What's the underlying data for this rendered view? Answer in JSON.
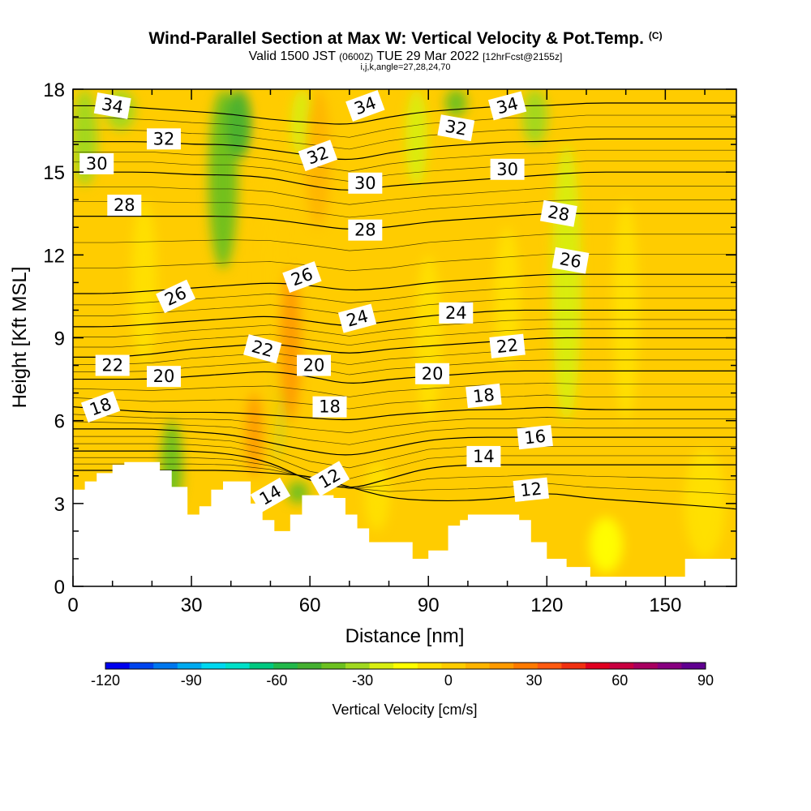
{
  "title": {
    "main": "Wind-Parallel Section at Max W: Vertical Velocity & Pot.Temp.",
    "copyright": "(C)",
    "valid_prefix": "Valid 1500 JST",
    "valid_utc": "(0600Z)",
    "valid_date": "TUE 29 Mar 2022",
    "forecast": "[12hrFcst@2155z]",
    "indices": "i,j,k,angle=27,28,24,70"
  },
  "chart_data": {
    "type": "contour-section",
    "xlabel": "Distance [nm]",
    "ylabel": "Height [Kft MSL]",
    "xlim": [
      0,
      168
    ],
    "ylim": [
      0,
      18
    ],
    "x_ticks": [
      0,
      30,
      60,
      90,
      120,
      150
    ],
    "y_ticks": [
      0,
      3,
      6,
      9,
      12,
      15,
      18
    ],
    "colorbar": {
      "label": "Vertical Velocity [cm/s]",
      "min": -120,
      "max": 90,
      "step": 10,
      "tick_values": [
        -120,
        -90,
        -60,
        -30,
        0,
        30,
        60,
        90
      ],
      "tick_labels": [
        "-120",
        "-90",
        "-60",
        "-30",
        "0",
        "30",
        "60",
        "90"
      ],
      "colors": [
        "#0000ee",
        "#0044ee",
        "#0077ee",
        "#00aaf0",
        "#00d8f0",
        "#00e0c8",
        "#00c880",
        "#22b84a",
        "#44b030",
        "#6cc020",
        "#a0d820",
        "#d8ee10",
        "#ffff00",
        "#ffe000",
        "#ffcc00",
        "#ffb400",
        "#ff9a00",
        "#ff7a00",
        "#ff5a10",
        "#f03010",
        "#e00020",
        "#c80040",
        "#a80060",
        "#880080",
        "#600090"
      ]
    },
    "terrain_profile": {
      "x": [
        0,
        3,
        6,
        10,
        13,
        22,
        25,
        29,
        32,
        35,
        38,
        45,
        48,
        51,
        55,
        58,
        66,
        69,
        72,
        75,
        78,
        86,
        90,
        95,
        98,
        100,
        113,
        116,
        120,
        125,
        131,
        145,
        155,
        168
      ],
      "y": [
        3.5,
        3.8,
        4.1,
        4.4,
        4.5,
        4.2,
        3.6,
        2.6,
        2.9,
        3.5,
        3.8,
        3.0,
        2.4,
        2.0,
        2.6,
        3.3,
        3.2,
        2.6,
        2.1,
        1.6,
        1.6,
        1.0,
        1.3,
        2.2,
        2.4,
        2.6,
        2.4,
        1.6,
        1.0,
        0.7,
        0.35,
        0.35,
        1.0,
        1.0
      ]
    },
    "isentropes": [
      {
        "theta": 12,
        "y": [
          4.2,
          4.2,
          4.2,
          4.2,
          4.2,
          4.1,
          4.0,
          3.6,
          3.2,
          3.1,
          3.1,
          3.2,
          3.4,
          3.2,
          3.1,
          3.0,
          2.9,
          2.8
        ]
      },
      {
        "theta": 14,
        "y": [
          4.9,
          4.9,
          4.9,
          4.9,
          4.8,
          4.5,
          3.8,
          3.5,
          3.9,
          4.3,
          4.4,
          4.4,
          4.4,
          4.4,
          4.4,
          4.4,
          4.4,
          4.4
        ]
      },
      {
        "theta": 16,
        "y": [
          5.7,
          5.7,
          5.7,
          5.6,
          5.5,
          5.2,
          4.9,
          4.7,
          5.0,
          5.3,
          5.4,
          5.4,
          5.4,
          5.4,
          5.4,
          5.4,
          5.4,
          5.4
        ]
      },
      {
        "theta": 18,
        "y": [
          6.5,
          6.4,
          6.3,
          6.3,
          6.3,
          6.2,
          6.1,
          6.0,
          6.2,
          6.3,
          6.4,
          6.4,
          6.5,
          6.4,
          6.4,
          6.4,
          6.4,
          6.4
        ]
      },
      {
        "theta": 20,
        "y": [
          7.5,
          7.5,
          7.5,
          7.6,
          7.7,
          7.8,
          7.6,
          7.3,
          7.5,
          7.6,
          7.7,
          7.8,
          7.8,
          7.8,
          7.8,
          7.8,
          7.8,
          7.8
        ]
      },
      {
        "theta": 22,
        "y": [
          8.3,
          8.3,
          8.4,
          8.6,
          8.7,
          8.8,
          8.6,
          8.4,
          8.6,
          8.7,
          8.8,
          8.9,
          9.0,
          9.0,
          9.0,
          9.0,
          9.0,
          9.0
        ]
      },
      {
        "theta": 24,
        "y": [
          9.4,
          9.4,
          9.5,
          9.6,
          9.7,
          9.8,
          9.6,
          9.4,
          9.6,
          9.8,
          9.9,
          10.0,
          10.0,
          10.0,
          10.0,
          10.0,
          10.0,
          10.0
        ]
      },
      {
        "theta": 26,
        "y": [
          10.6,
          10.6,
          10.7,
          10.8,
          10.9,
          11.0,
          10.9,
          10.7,
          10.8,
          11.0,
          11.1,
          11.2,
          11.3,
          11.3,
          11.3,
          11.3,
          11.3,
          11.3
        ]
      },
      {
        "theta": 28,
        "y": [
          13.4,
          13.4,
          13.4,
          13.4,
          13.4,
          13.3,
          13.1,
          12.9,
          13.0,
          13.2,
          13.3,
          13.4,
          13.5,
          13.5,
          13.5,
          13.5,
          13.5,
          13.5
        ]
      },
      {
        "theta": 30,
        "y": [
          15.0,
          15.0,
          15.0,
          14.9,
          14.9,
          14.8,
          14.5,
          14.3,
          14.5,
          14.6,
          14.7,
          14.8,
          14.9,
          15.0,
          15.0,
          15.0,
          15.0,
          15.0
        ]
      },
      {
        "theta": 32,
        "y": [
          16.1,
          16.1,
          16.1,
          16.0,
          16.0,
          15.8,
          15.6,
          15.4,
          15.7,
          15.9,
          16.0,
          16.1,
          16.1,
          16.2,
          16.2,
          16.2,
          16.2,
          16.2
        ]
      },
      {
        "theta": 34,
        "y": [
          17.4,
          17.4,
          17.3,
          17.2,
          17.1,
          16.9,
          16.8,
          16.7,
          17.0,
          17.2,
          17.3,
          17.4,
          17.4,
          17.5,
          17.5,
          17.5,
          17.5,
          17.5
        ]
      }
    ],
    "isentrope_x": [
      0,
      10,
      20,
      30,
      40,
      50,
      60,
      70,
      80,
      90,
      100,
      110,
      120,
      130,
      140,
      150,
      160,
      168
    ],
    "contour_labels": [
      {
        "text": "12",
        "x": 65,
        "y": 3.9,
        "rot": -30
      },
      {
        "text": "12",
        "x": 116,
        "y": 3.5,
        "rot": -6
      },
      {
        "text": "14",
        "x": 50,
        "y": 3.3,
        "rot": -30
      },
      {
        "text": "14",
        "x": 104,
        "y": 4.7,
        "rot": 0
      },
      {
        "text": "16",
        "x": 117,
        "y": 5.4,
        "rot": -6
      },
      {
        "text": "18",
        "x": 7,
        "y": 6.5,
        "rot": -20
      },
      {
        "text": "18",
        "x": 65,
        "y": 6.5,
        "rot": 0
      },
      {
        "text": "18",
        "x": 104,
        "y": 6.9,
        "rot": -6
      },
      {
        "text": "20",
        "x": 23,
        "y": 7.6,
        "rot": 0
      },
      {
        "text": "20",
        "x": 61,
        "y": 8.0,
        "rot": 0
      },
      {
        "text": "20",
        "x": 91,
        "y": 7.7,
        "rot": 0
      },
      {
        "text": "22",
        "x": 10,
        "y": 8.0,
        "rot": 0
      },
      {
        "text": "22",
        "x": 48,
        "y": 8.6,
        "rot": 15
      },
      {
        "text": "22",
        "x": 110,
        "y": 8.7,
        "rot": -6
      },
      {
        "text": "24",
        "x": 72,
        "y": 9.7,
        "rot": -15
      },
      {
        "text": "24",
        "x": 97,
        "y": 9.9,
        "rot": 0
      },
      {
        "text": "26",
        "x": 26,
        "y": 10.5,
        "rot": -25
      },
      {
        "text": "26",
        "x": 58,
        "y": 11.2,
        "rot": -20
      },
      {
        "text": "26",
        "x": 126,
        "y": 11.8,
        "rot": 10
      },
      {
        "text": "28",
        "x": 13,
        "y": 13.8,
        "rot": 0
      },
      {
        "text": "28",
        "x": 74,
        "y": 12.9,
        "rot": 0
      },
      {
        "text": "28",
        "x": 123,
        "y": 13.5,
        "rot": 10
      },
      {
        "text": "30",
        "x": 6,
        "y": 15.3,
        "rot": 0
      },
      {
        "text": "30",
        "x": 74,
        "y": 14.6,
        "rot": 0
      },
      {
        "text": "30",
        "x": 110,
        "y": 15.1,
        "rot": 0
      },
      {
        "text": "32",
        "x": 23,
        "y": 16.2,
        "rot": 0
      },
      {
        "text": "32",
        "x": 62,
        "y": 15.6,
        "rot": -20
      },
      {
        "text": "32",
        "x": 97,
        "y": 16.6,
        "rot": 10
      },
      {
        "text": "34",
        "x": 10,
        "y": 17.4,
        "rot": 10
      },
      {
        "text": "34",
        "x": 74,
        "y": 17.4,
        "rot": -20
      },
      {
        "text": "34",
        "x": 110,
        "y": 17.4,
        "rot": -15
      }
    ],
    "velocity_features": [
      {
        "x": 3,
        "y0": 14.5,
        "y1": 18,
        "w": 4,
        "value": -15
      },
      {
        "x": 12,
        "y0": 16.5,
        "y1": 18,
        "w": 5,
        "value": -15
      },
      {
        "x": 38,
        "y0": 11.5,
        "y1": 18,
        "w": 5,
        "value": -25
      },
      {
        "x": 42,
        "y0": 15.5,
        "y1": 18,
        "w": 4,
        "value": -35
      },
      {
        "x": 25,
        "y0": 2.8,
        "y1": 6.0,
        "w": 3,
        "value": -30
      },
      {
        "x": 51,
        "y0": 4.5,
        "y1": 8.0,
        "w": 2,
        "value": -20
      },
      {
        "x": 57,
        "y0": 3.0,
        "y1": 3.8,
        "w": 3,
        "value": -30
      },
      {
        "x": 58,
        "y0": 15.5,
        "y1": 18,
        "w": 3,
        "value": -10
      },
      {
        "x": 87,
        "y0": 14.5,
        "y1": 18,
        "w": 3,
        "value": -10
      },
      {
        "x": 97,
        "y0": 17.0,
        "y1": 18,
        "w": 3,
        "value": -25
      },
      {
        "x": 117,
        "y0": 16.0,
        "y1": 18,
        "w": 4,
        "value": -20
      },
      {
        "x": 125,
        "y0": 6.0,
        "y1": 16.0,
        "w": 5,
        "value": -5
      },
      {
        "x": 50,
        "y0": 4.0,
        "y1": 18,
        "w": 4,
        "value": 25
      },
      {
        "x": 55,
        "y0": 6.0,
        "y1": 11.5,
        "w": 3,
        "value": 40
      },
      {
        "x": 62,
        "y0": 13.0,
        "y1": 18,
        "w": 4,
        "value": 30
      },
      {
        "x": 46,
        "y0": 4.0,
        "y1": 7.0,
        "w": 2,
        "value": 45
      },
      {
        "x": 18,
        "y0": 8.0,
        "y1": 14.0,
        "w": 4,
        "value": 12
      },
      {
        "x": 77,
        "y0": 2.0,
        "y1": 4.5,
        "w": 4,
        "value": 15
      },
      {
        "x": 90,
        "y0": 6.0,
        "y1": 12.0,
        "w": 4,
        "value": 12
      },
      {
        "x": 110,
        "y0": 8.0,
        "y1": 13.0,
        "w": 4,
        "value": 15
      },
      {
        "x": 140,
        "y0": 6.0,
        "y1": 14.0,
        "w": 4,
        "value": 12
      },
      {
        "x": 135,
        "y0": 0.5,
        "y1": 2.5,
        "w": 6,
        "value": 2
      },
      {
        "x": 160,
        "y0": 1.0,
        "y1": 5.0,
        "w": 8,
        "value": 12
      }
    ]
  }
}
